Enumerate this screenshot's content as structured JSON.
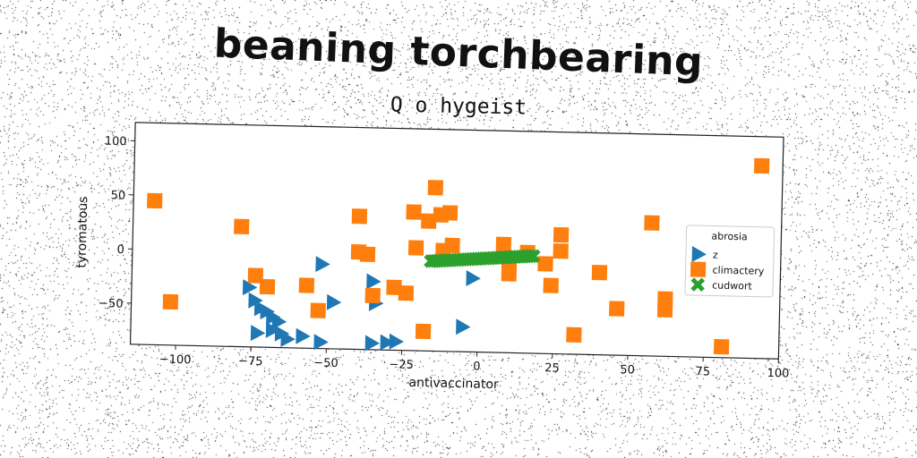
{
  "title": "beaning torchbearing",
  "subtitle": "Q o hygeist",
  "chart_data": {
    "type": "scatter",
    "xlabel": "antivaccinator",
    "ylabel": "tyromatous",
    "xlim": [
      -115,
      100
    ],
    "ylim": [
      -88,
      117
    ],
    "xticks": [
      "−100",
      "−75",
      "−50",
      "−25",
      "0",
      "25",
      "50",
      "75",
      "100"
    ],
    "xtick_values": [
      -100,
      -75,
      -50,
      -25,
      0,
      25,
      50,
      75,
      100
    ],
    "yticks": [
      "100",
      "50",
      "0",
      "−50"
    ],
    "ytick_values": [
      100,
      50,
      0,
      -50
    ],
    "legend_title": "abrosia",
    "legend_position": "right",
    "grid": false,
    "series": [
      {
        "name": "z",
        "marker": "triangle-right",
        "color": "#1f77b4",
        "points": [
          [
            -52,
            -10
          ],
          [
            -76,
            -33
          ],
          [
            -74,
            -45
          ],
          [
            -72,
            -52
          ],
          [
            -70,
            -55
          ],
          [
            -68,
            -60
          ],
          [
            -66,
            -64
          ],
          [
            -73,
            -75
          ],
          [
            -68,
            -72
          ],
          [
            -65,
            -75
          ],
          [
            -63,
            -80
          ],
          [
            -58,
            -77
          ],
          [
            -52,
            -82
          ],
          [
            -35,
            -25
          ],
          [
            -34,
            -45
          ],
          [
            -48,
            -45
          ],
          [
            -35,
            -82
          ],
          [
            -30,
            -81
          ],
          [
            -27,
            -80
          ],
          [
            -5,
            -65
          ],
          [
            -2,
            -20
          ]
        ]
      },
      {
        "name": "climactery",
        "marker": "square",
        "color": "#ff7f0e",
        "points": [
          [
            -108,
            45
          ],
          [
            -102,
            -48
          ],
          [
            -79,
            23
          ],
          [
            -74,
            -22
          ],
          [
            -70,
            -32
          ],
          [
            -57,
            -30
          ],
          [
            -53,
            -53
          ],
          [
            -40,
            35
          ],
          [
            -40,
            2
          ],
          [
            -37,
            0
          ],
          [
            -35,
            -38
          ],
          [
            -28,
            -30
          ],
          [
            -24,
            -35
          ],
          [
            -22,
            40
          ],
          [
            -21,
            7
          ],
          [
            -17,
            32
          ],
          [
            -15,
            63
          ],
          [
            -13,
            38
          ],
          [
            -10,
            40
          ],
          [
            -12,
            5
          ],
          [
            -9,
            10
          ],
          [
            8,
            12
          ],
          [
            10,
            -15
          ],
          [
            10,
            -5
          ],
          [
            16,
            5
          ],
          [
            22,
            -5
          ],
          [
            24,
            -25
          ],
          [
            27,
            7
          ],
          [
            27,
            22
          ],
          [
            40,
            -12
          ],
          [
            46,
            -45
          ],
          [
            57,
            35
          ],
          [
            62,
            -35
          ],
          [
            62,
            -45
          ],
          [
            32,
            -70
          ],
          [
            -18,
            -70
          ],
          [
            81,
            -78
          ],
          [
            93,
            90
          ]
        ]
      },
      {
        "name": "cudwort",
        "marker": "x",
        "color": "#2ca02c",
        "line": {
          "x_from": -16,
          "x_to": 18,
          "y_from": -5,
          "y_to": 2
        }
      }
    ]
  }
}
